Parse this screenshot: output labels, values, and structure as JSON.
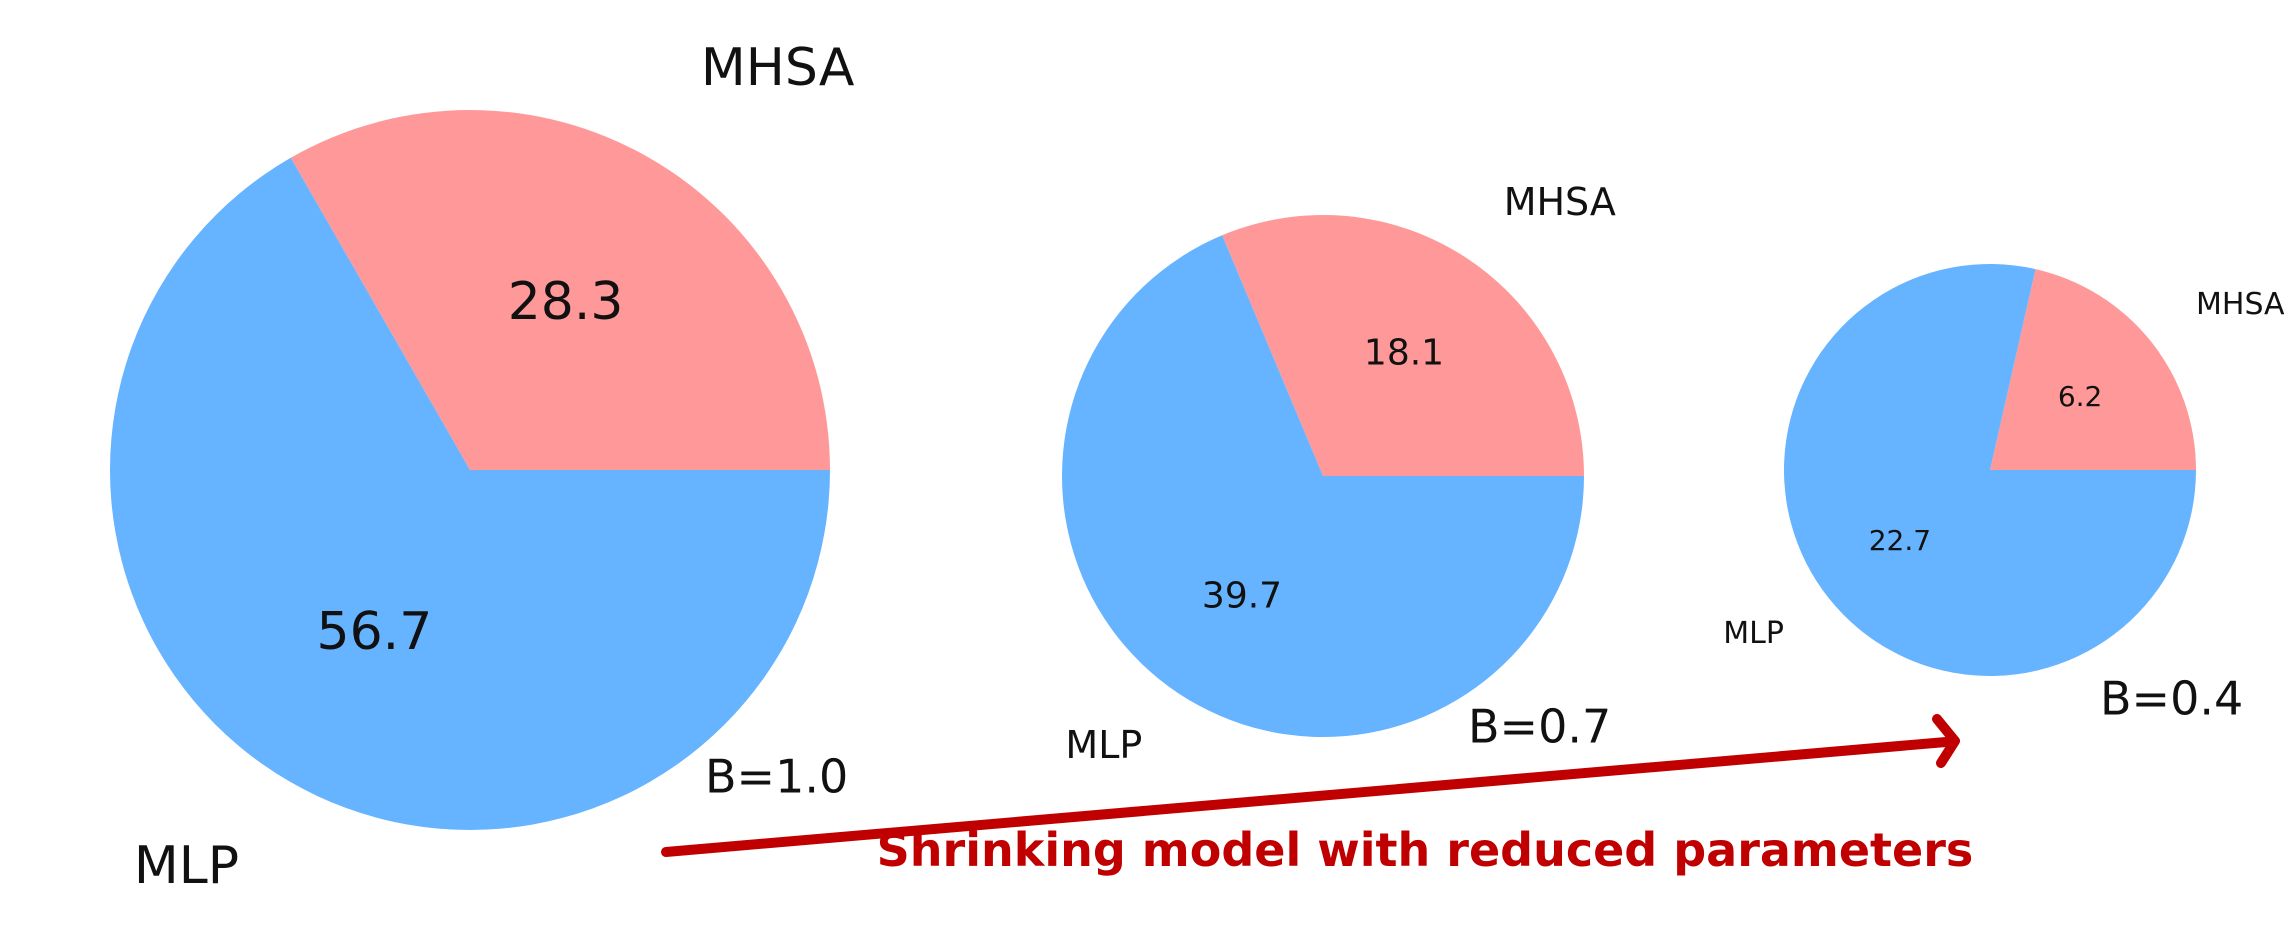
{
  "chart_data": [
    {
      "type": "pie",
      "caption": "B=1.0",
      "slices": [
        {
          "label": "MHSA",
          "value": 28.3,
          "color": "#ff9999"
        },
        {
          "label": "MLP",
          "value": 56.7,
          "color": "#66b3ff"
        }
      ]
    },
    {
      "type": "pie",
      "caption": "B=0.7",
      "slices": [
        {
          "label": "MHSA",
          "value": 18.1,
          "color": "#ff9999"
        },
        {
          "label": "MLP",
          "value": 39.7,
          "color": "#66b3ff"
        }
      ]
    },
    {
      "type": "pie",
      "caption": "B=0.4",
      "slices": [
        {
          "label": "MHSA",
          "value": 6.2,
          "color": "#ff9999"
        },
        {
          "label": "MLP",
          "value": 22.7,
          "color": "#66b3ff"
        }
      ]
    }
  ],
  "annotation": {
    "text": "Shrinking model with reduced parameters",
    "color": "#c00000"
  }
}
